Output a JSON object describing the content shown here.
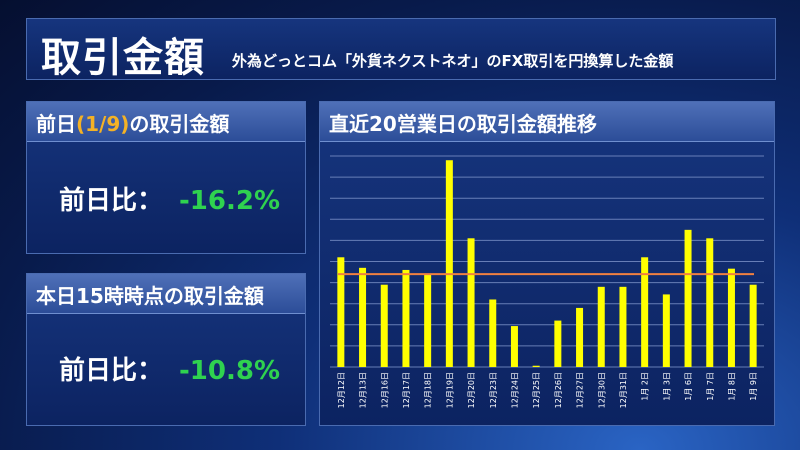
{
  "header": {
    "title": "取引金額",
    "subtitle": "外為どっとコム「外貨ネクストネオ」のFX取引を円換算した金額"
  },
  "card_prev": {
    "title_pre": "前日",
    "title_date": "(1/9)",
    "title_post": "の取引金額",
    "ratio_label": "前日比：",
    "ratio_value": "-16.2%"
  },
  "card_today": {
    "title": "本日15時時点の取引金額",
    "ratio_label": "前日比：",
    "ratio_value": "-10.8%"
  },
  "chart_data": {
    "type": "bar",
    "title": "直近20営業日の取引金額推移",
    "categories": [
      "12月12日",
      "12月13日",
      "12月16日",
      "12月17日",
      "12月18日",
      "12月19日",
      "12月20日",
      "12月23日",
      "12月24日",
      "12月25日",
      "12月26日",
      "12月27日",
      "12月30日",
      "12月31日",
      "1月 2日",
      "1月 3日",
      "1月 6日",
      "1月 7日",
      "1月 8日",
      "1月 9日"
    ],
    "values": [
      2.6,
      2.35,
      1.95,
      2.3,
      2.2,
      4.9,
      3.05,
      1.6,
      0.97,
      0.03,
      1.1,
      1.4,
      1.9,
      1.9,
      2.6,
      1.72,
      3.25,
      3.05,
      2.33,
      1.95
    ],
    "average": 2.2,
    "ylim": [
      0,
      5
    ],
    "grid": true,
    "colors": {
      "bar": "#ffff00",
      "average_line": "#f08040",
      "grid": "#7d93c9"
    }
  }
}
